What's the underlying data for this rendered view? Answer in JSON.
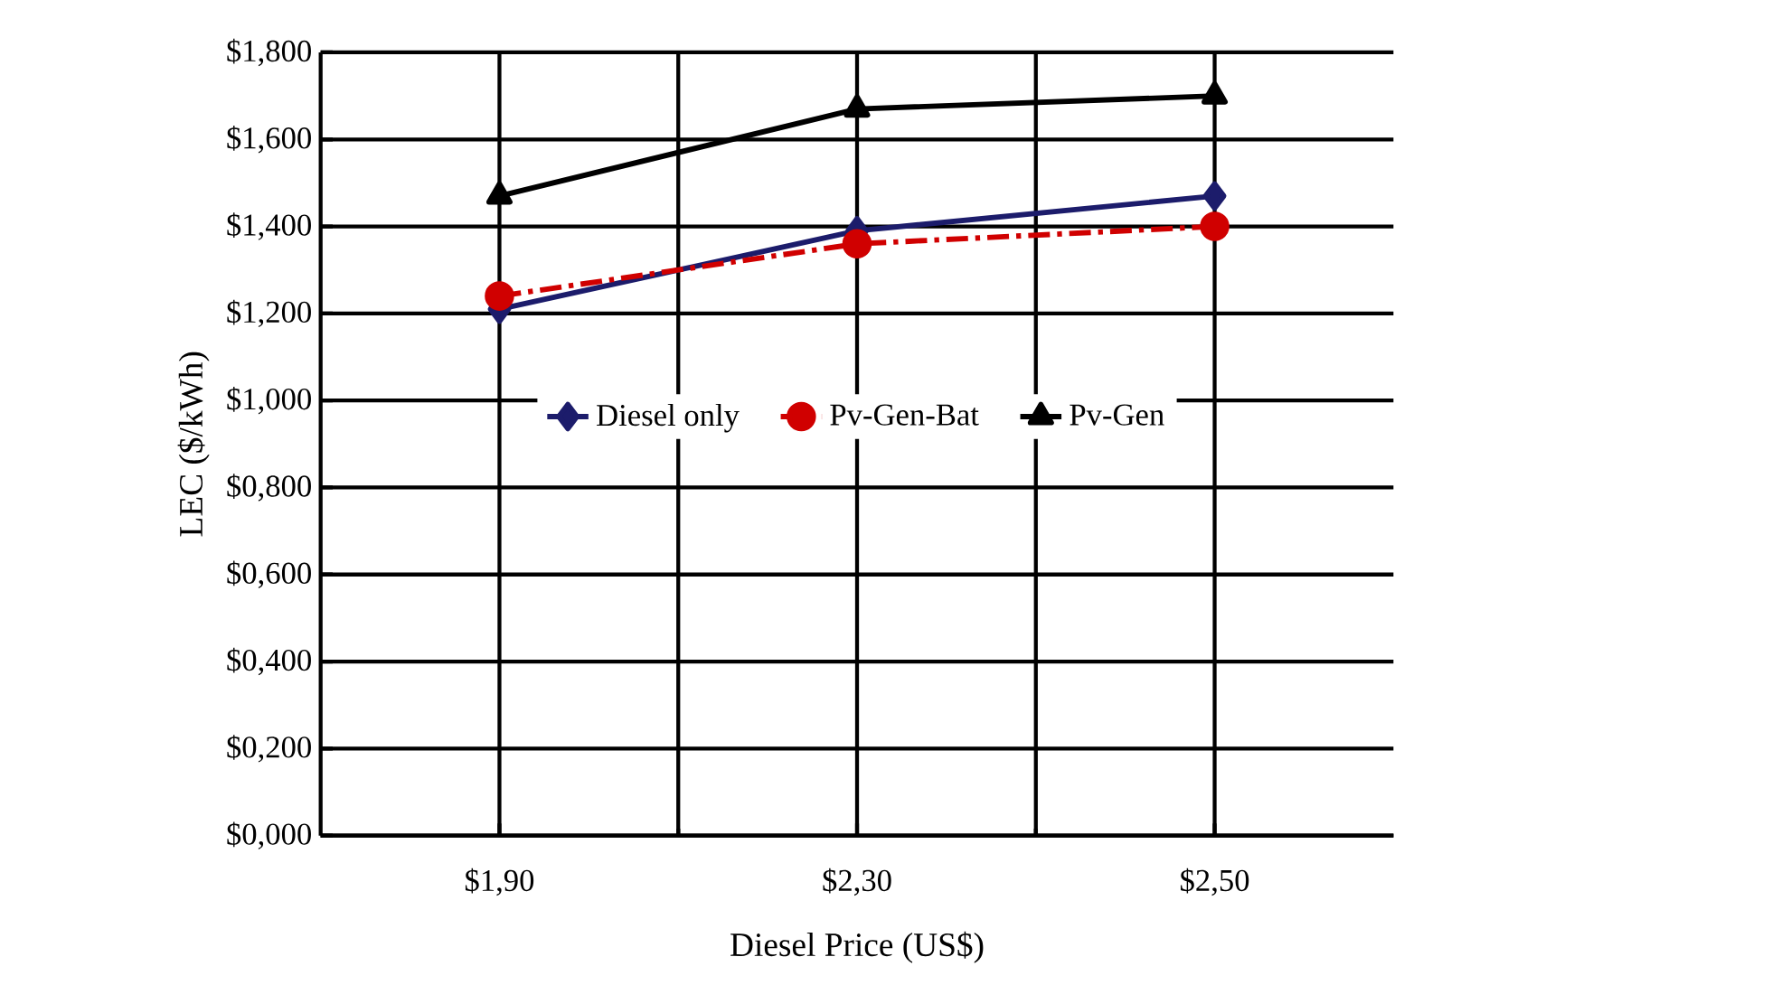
{
  "chart_data": {
    "type": "line",
    "xlabel": "Diesel Price (US$)",
    "ylabel": "LEC ($/kWh)",
    "categories": [
      "$1,90",
      "$2,30",
      "$2,50"
    ],
    "series": [
      {
        "name": "Diesel only",
        "color": "#1c1c6b",
        "values": [
          1.21,
          1.39,
          1.47
        ],
        "marker": "diamond",
        "line_style": "solid"
      },
      {
        "name": "Pv-Gen-Bat",
        "color": "#d00000",
        "values": [
          1.24,
          1.36,
          1.4
        ],
        "marker": "circle",
        "line_style": "dashed"
      },
      {
        "name": "Pv-Gen",
        "color": "#000000",
        "values": [
          1.47,
          1.67,
          1.7
        ],
        "marker": "triangle",
        "line_style": "solid"
      }
    ],
    "ylim": [
      0,
      1.8
    ],
    "yticks": [
      {
        "value": 0,
        "label": "$0,000"
      },
      {
        "value": 0.2,
        "label": "$0,200"
      },
      {
        "value": 0.4,
        "label": "$0,400"
      },
      {
        "value": 0.6,
        "label": "$0,600"
      },
      {
        "value": 0.8,
        "label": "$0,800"
      },
      {
        "value": 1.0,
        "label": "$1,000"
      },
      {
        "value": 1.2,
        "label": "$1,200"
      },
      {
        "value": 1.4,
        "label": "$1,400"
      },
      {
        "value": 1.6,
        "label": "$1,600"
      },
      {
        "value": 1.8,
        "label": "$1,800"
      }
    ],
    "grid": true,
    "legend": "center"
  }
}
